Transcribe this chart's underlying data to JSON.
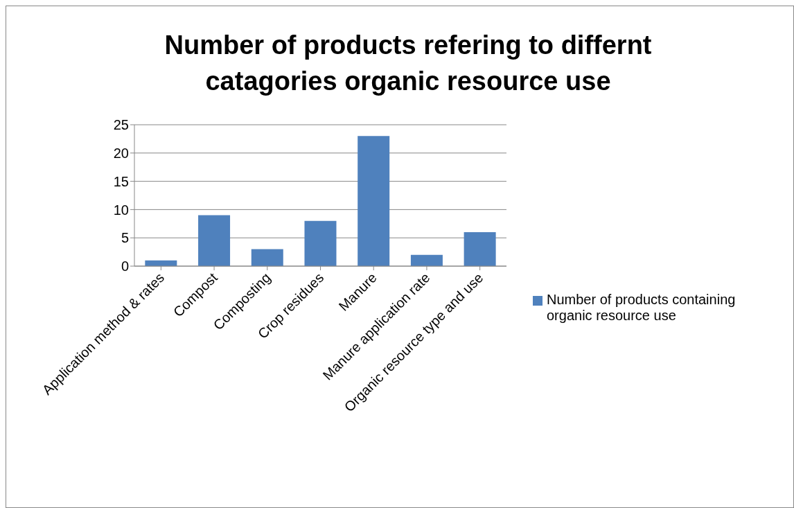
{
  "chart_data": {
    "type": "bar",
    "title": "Number of products refering to differnt catagories organic resource use",
    "categories": [
      "Application method & rates",
      "Compost",
      "Composting",
      "Crop residues",
      "Manure",
      "Manure application rate",
      "Organic resource type and use"
    ],
    "series": [
      {
        "name": "Number of products containing organic resource use",
        "color": "#4f81bd",
        "values": [
          1,
          9,
          3,
          8,
          23,
          2,
          6
        ]
      }
    ],
    "ylim": [
      0,
      25
    ],
    "yticks": [
      0,
      5,
      10,
      15,
      20,
      25
    ],
    "grid": "y",
    "legend": "right"
  }
}
